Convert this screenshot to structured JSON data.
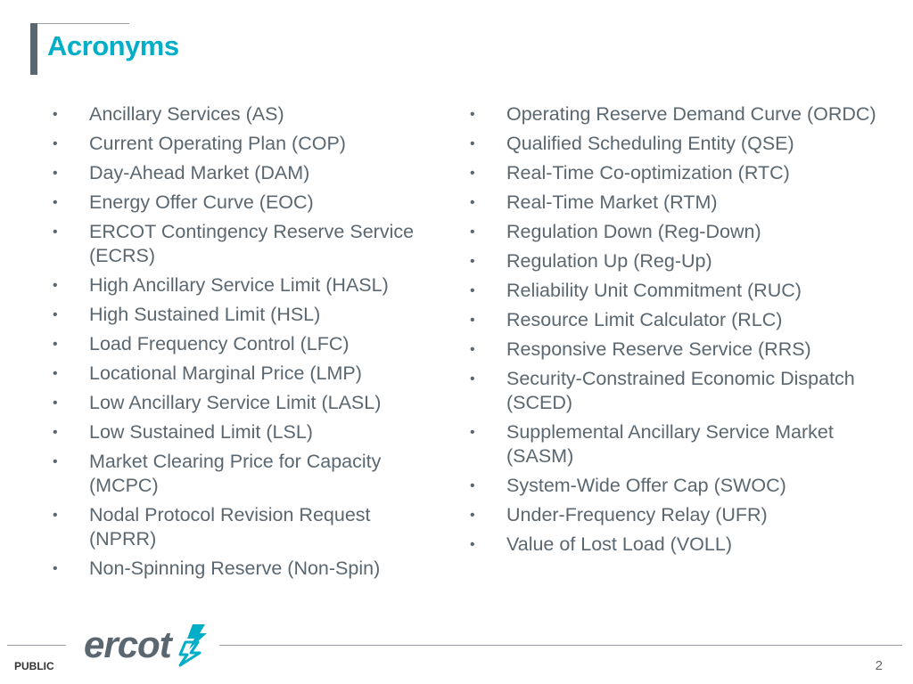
{
  "slide": {
    "title": "Acronyms",
    "left_items": [
      "Ancillary Services (AS)",
      "Current Operating Plan (COP)",
      "Day-Ahead Market (DAM)",
      "Energy Offer Curve (EOC)",
      "ERCOT Contingency Reserve Service (ECRS)",
      "High Ancillary Service Limit (HASL)",
      "High Sustained Limit (HSL)",
      "Load Frequency Control (LFC)",
      "Locational Marginal Price (LMP)",
      "Low Ancillary Service Limit (LASL)",
      "Low Sustained Limit (LSL)",
      "Market Clearing Price for Capacity (MCPC)",
      "Nodal Protocol Revision Request (NPRR)",
      "Non-Spinning Reserve (Non-Spin)"
    ],
    "right_items": [
      "Operating Reserve Demand Curve (ORDC)",
      "Qualified Scheduling Entity (QSE)",
      "Real-Time Co-optimization (RTC)",
      "Real-Time Market (RTM)",
      "Regulation Down (Reg-Down)",
      "Regulation Up (Reg-Up)",
      "Reliability Unit Commitment (RUC)",
      "Resource Limit Calculator (RLC)",
      "Responsive Reserve Service (RRS)",
      "Security-Constrained Economic Dispatch (SCED)",
      "Supplemental Ancillary Service Market (SASM)",
      "System-Wide Offer Cap (SWOC)",
      "Under-Frequency Relay (UFR)",
      "Value of Lost Load (VOLL)"
    ],
    "bullet_char": "•"
  },
  "footer": {
    "logo_text": "ercot",
    "logo_icon": "ercot-lightning-icon",
    "classification": "PUBLIC",
    "page_number": "2"
  },
  "colors": {
    "title": "#00aec7",
    "body_text": "#5b6770",
    "accent_bar": "#5b6770",
    "logo_mark": "#00aec7"
  }
}
